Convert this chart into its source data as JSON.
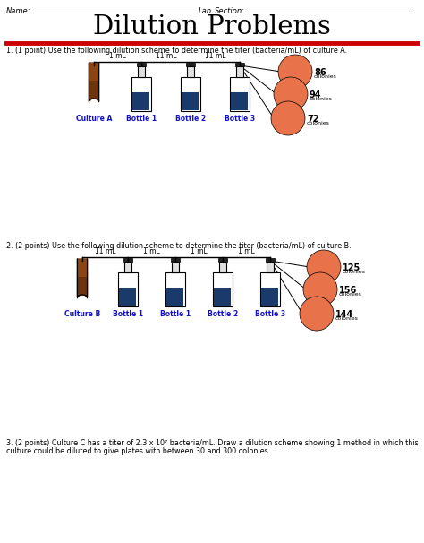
{
  "title": "Dilution Problems",
  "header_name": "Name:",
  "header_lab": "Lab",
  "header_section": "Section:",
  "bg_color": "#ffffff",
  "red_line_color": "#cc0000",
  "q1_text": "1. (1 point) Use the following dilution scheme to determine the titer (bacteria/mL) of culture A.",
  "q1_labels": [
    "Culture A",
    "Bottle 1",
    "Bottle 2",
    "Bottle 3"
  ],
  "q1_volumes": [
    "1 mL",
    "11 mL",
    "11 mL"
  ],
  "q1_colonies": [
    86,
    94,
    72
  ],
  "q2_text": "2. (2 points) Use the following dilution scheme to determine the titer (bacteria/mL) of culture B.",
  "q2_labels": [
    "Culture B",
    "Bottle 1",
    "Bottle 1",
    "Bottle 2",
    "Bottle 3"
  ],
  "q2_volumes": [
    "11 mL",
    "1 mL",
    "1 mL",
    "1 mL"
  ],
  "q2_colonies": [
    125,
    156,
    144
  ],
  "q3_line1": "3. (2 points) Culture C has a titer of 2.3 x 10⁷ bacteria/mL. Draw a dilution scheme showing 1 method in which this",
  "q3_line2": "culture could be diluted to give plates with between 30 and 300 colonies.",
  "tube_color": "#8B4513",
  "bottle_liquid_color": "#1a3a6b",
  "plate_color": "#e8724a",
  "label_color": "#1111cc",
  "line_color": "#000000"
}
